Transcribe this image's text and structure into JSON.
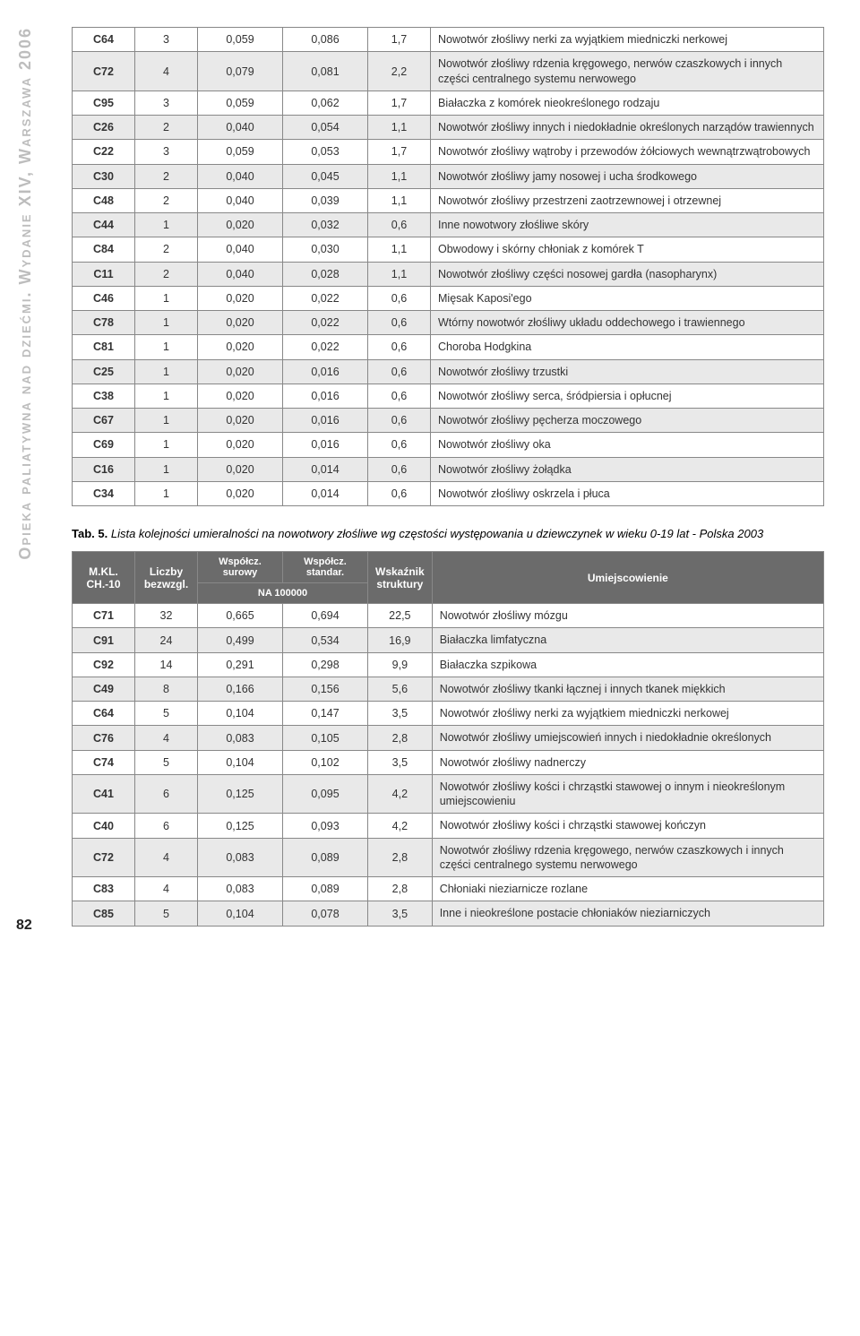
{
  "side_label": "Opieka paliatywna nad dziećmi. Wydanie XIV, Warszawa 2006",
  "page_number": "82",
  "table1": {
    "col_widths": [
      "70px",
      "70px",
      "95px",
      "95px",
      "70px",
      "auto"
    ],
    "rows": [
      {
        "code": "C64",
        "c1": "3",
        "c2": "0,059",
        "c3": "0,086",
        "c4": "1,7",
        "desc": "Nowotwór złośliwy nerki za wyjątkiem miedniczki nerkowej",
        "alt": false
      },
      {
        "code": "C72",
        "c1": "4",
        "c2": "0,079",
        "c3": "0,081",
        "c4": "2,2",
        "desc": "Nowotwór złośliwy rdzenia kręgowego, nerwów czaszkowych i innych części centralnego systemu nerwowego",
        "alt": true
      },
      {
        "code": "C95",
        "c1": "3",
        "c2": "0,059",
        "c3": "0,062",
        "c4": "1,7",
        "desc": "Białaczka z komórek nieokreślonego rodzaju",
        "alt": false
      },
      {
        "code": "C26",
        "c1": "2",
        "c2": "0,040",
        "c3": "0,054",
        "c4": "1,1",
        "desc": "Nowotwór złośliwy innych i niedokładnie określonych narządów trawiennych",
        "alt": true
      },
      {
        "code": "C22",
        "c1": "3",
        "c2": "0,059",
        "c3": "0,053",
        "c4": "1,7",
        "desc": "Nowotwór złośliwy wątroby i przewodów żółciowych wewnątrzwątrobowych",
        "alt": false
      },
      {
        "code": "C30",
        "c1": "2",
        "c2": "0,040",
        "c3": "0,045",
        "c4": "1,1",
        "desc": "Nowotwór złośliwy jamy nosowej i ucha środkowego",
        "alt": true
      },
      {
        "code": "C48",
        "c1": "2",
        "c2": "0,040",
        "c3": "0,039",
        "c4": "1,1",
        "desc": "Nowotwór złośliwy przestrzeni zaotrzewnowej i otrzewnej",
        "alt": false
      },
      {
        "code": "C44",
        "c1": "1",
        "c2": "0,020",
        "c3": "0,032",
        "c4": "0,6",
        "desc": "Inne nowotwory złośliwe skóry",
        "alt": true
      },
      {
        "code": "C84",
        "c1": "2",
        "c2": "0,040",
        "c3": "0,030",
        "c4": "1,1",
        "desc": "Obwodowy i skórny chłoniak z komórek T",
        "alt": false
      },
      {
        "code": "C11",
        "c1": "2",
        "c2": "0,040",
        "c3": "0,028",
        "c4": "1,1",
        "desc": "Nowotwór złośliwy części nosowej gardła (nasopharynx)",
        "alt": true
      },
      {
        "code": "C46",
        "c1": "1",
        "c2": "0,020",
        "c3": "0,022",
        "c4": "0,6",
        "desc": "Mięsak Kaposi'ego",
        "alt": false
      },
      {
        "code": "C78",
        "c1": "1",
        "c2": "0,020",
        "c3": "0,022",
        "c4": "0,6",
        "desc": "Wtórny nowotwór złośliwy układu oddechowego i trawiennego",
        "alt": true
      },
      {
        "code": "C81",
        "c1": "1",
        "c2": "0,020",
        "c3": "0,022",
        "c4": "0,6",
        "desc": "Choroba Hodgkina",
        "alt": false
      },
      {
        "code": "C25",
        "c1": "1",
        "c2": "0,020",
        "c3": "0,016",
        "c4": "0,6",
        "desc": "Nowotwór złośliwy trzustki",
        "alt": true
      },
      {
        "code": "C38",
        "c1": "1",
        "c2": "0,020",
        "c3": "0,016",
        "c4": "0,6",
        "desc": "Nowotwór złośliwy serca, śródpiersia i opłucnej",
        "alt": false
      },
      {
        "code": "C67",
        "c1": "1",
        "c2": "0,020",
        "c3": "0,016",
        "c4": "0,6",
        "desc": "Nowotwór złośliwy pęcherza moczowego",
        "alt": true
      },
      {
        "code": "C69",
        "c1": "1",
        "c2": "0,020",
        "c3": "0,016",
        "c4": "0,6",
        "desc": "Nowotwór złośliwy oka",
        "alt": false
      },
      {
        "code": "C16",
        "c1": "1",
        "c2": "0,020",
        "c3": "0,014",
        "c4": "0,6",
        "desc": "Nowotwór złośliwy żołądka",
        "alt": true
      },
      {
        "code": "C34",
        "c1": "1",
        "c2": "0,020",
        "c3": "0,014",
        "c4": "0,6",
        "desc": "Nowotwór złośliwy oskrzela i płuca",
        "alt": false
      }
    ]
  },
  "caption": {
    "label": "Tab. 5.",
    "text": "Lista kolejności umieralności na nowotwory złośliwe wg częstości występowania u dziewczynek w wieku 0-19 lat - Polska 2003"
  },
  "table2": {
    "header": {
      "mkl": "M.KL.\nCH.-10",
      "liczby": "Liczby\nbezwzgl.",
      "wsp_sur": "Współcz.\nsurowy",
      "wsp_std": "Współcz.\nstandar.",
      "na100k": "NA 100000",
      "wskaznik": "Wskaźnik\nstruktury",
      "umiejsc": "Umiejscowienie"
    },
    "rows": [
      {
        "code": "C71",
        "c1": "32",
        "c2": "0,665",
        "c3": "0,694",
        "c4": "22,5",
        "desc": "Nowotwór złośliwy mózgu",
        "alt": false
      },
      {
        "code": "C91",
        "c1": "24",
        "c2": "0,499",
        "c3": "0,534",
        "c4": "16,9",
        "desc": "Białaczka limfatyczna",
        "alt": true
      },
      {
        "code": "C92",
        "c1": "14",
        "c2": "0,291",
        "c3": "0,298",
        "c4": "9,9",
        "desc": "Białaczka szpikowa",
        "alt": false
      },
      {
        "code": "C49",
        "c1": "8",
        "c2": "0,166",
        "c3": "0,156",
        "c4": "5,6",
        "desc": "Nowotwór złośliwy tkanki łącznej i innych tkanek miękkich",
        "alt": true
      },
      {
        "code": "C64",
        "c1": "5",
        "c2": "0,104",
        "c3": "0,147",
        "c4": "3,5",
        "desc": "Nowotwór złośliwy nerki za wyjątkiem miedniczki nerkowej",
        "alt": false
      },
      {
        "code": "C76",
        "c1": "4",
        "c2": "0,083",
        "c3": "0,105",
        "c4": "2,8",
        "desc": "Nowotwór złośliwy umiejscowień innych i niedokładnie określonych",
        "alt": true
      },
      {
        "code": "C74",
        "c1": "5",
        "c2": "0,104",
        "c3": "0,102",
        "c4": "3,5",
        "desc": "Nowotwór złośliwy nadnerczy",
        "alt": false
      },
      {
        "code": "C41",
        "c1": "6",
        "c2": "0,125",
        "c3": "0,095",
        "c4": "4,2",
        "desc": "Nowotwór złośliwy kości i chrząstki stawowej o innym i nieokreślonym umiejscowieniu",
        "alt": true
      },
      {
        "code": "C40",
        "c1": "6",
        "c2": "0,125",
        "c3": "0,093",
        "c4": "4,2",
        "desc": "Nowotwór złośliwy kości i chrząstki stawowej kończyn",
        "alt": false
      },
      {
        "code": "C72",
        "c1": "4",
        "c2": "0,083",
        "c3": "0,089",
        "c4": "2,8",
        "desc": "Nowotwór złośliwy rdzenia kręgowego, nerwów czaszkowych i innych części centralnego systemu nerwowego",
        "alt": true
      },
      {
        "code": "C83",
        "c1": "4",
        "c2": "0,083",
        "c3": "0,089",
        "c4": "2,8",
        "desc": "Chłoniaki nieziarnicze rozlane",
        "alt": false
      },
      {
        "code": "C85",
        "c1": "5",
        "c2": "0,104",
        "c3": "0,078",
        "c4": "3,5",
        "desc": "Inne i nieokreślone postacie chłoniaków nieziarniczych",
        "alt": true
      }
    ]
  },
  "colors": {
    "alt_row": "#e9e9e9",
    "header_bg": "#6b6b6b",
    "header_fg": "#ffffff",
    "border": "#888888",
    "side_text": "#bdbdbd",
    "body_text": "#333333"
  },
  "fonts": {
    "body_size_pt": 9.5,
    "header_size_pt": 9,
    "side_size_pt": 14,
    "family": "Arial"
  }
}
